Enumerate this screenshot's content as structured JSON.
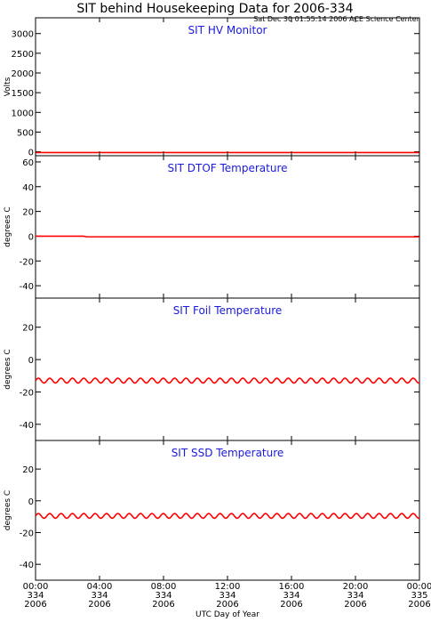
{
  "title": "SIT behind Housekeeping Data for 2006-334",
  "subtitle": "Sat Dec 30 01:55:14 2006 ACE Science Center",
  "colors": {
    "trace": "#ff0000",
    "panel_title": "#1a1adc",
    "axes": "#000000"
  },
  "x_axis": {
    "label": "UTC Day of Year",
    "ticks": [
      {
        "time": "00:00",
        "doy": "334",
        "year": "2006"
      },
      {
        "time": "04:00",
        "doy": "334",
        "year": "2006"
      },
      {
        "time": "08:00",
        "doy": "334",
        "year": "2006"
      },
      {
        "time": "12:00",
        "doy": "334",
        "year": "2006"
      },
      {
        "time": "16:00",
        "doy": "334",
        "year": "2006"
      },
      {
        "time": "20:00",
        "doy": "334",
        "year": "2006"
      },
      {
        "time": "00:00",
        "doy": "335",
        "year": "2006"
      }
    ]
  },
  "chart_data": [
    {
      "type": "line",
      "title": "SIT HV Monitor",
      "ylabel": "Volts",
      "xlim": [
        0,
        24
      ],
      "ylim": [
        -100,
        3400
      ],
      "yticks": [
        0,
        500,
        1000,
        1500,
        2000,
        2500,
        3000
      ],
      "grid": false,
      "series": [
        {
          "x": [
            0,
            24
          ],
          "y": [
            -20,
            -20
          ],
          "color": "#ff0000"
        }
      ]
    },
    {
      "type": "line",
      "title": "SIT DTOF Temperature",
      "ylabel": "degrees C",
      "xlim": [
        0,
        24
      ],
      "ylim": [
        -50,
        65
      ],
      "yticks": [
        -40,
        -20,
        0,
        20,
        40,
        60
      ],
      "grid": false,
      "series": [
        {
          "x": [
            0,
            3,
            3.2,
            24
          ],
          "y": [
            0,
            0,
            -0.5,
            -0.5
          ],
          "color": "#ff0000"
        }
      ]
    },
    {
      "type": "line",
      "title": "SIT Foil Temperature",
      "ylabel": "degrees C",
      "xlim": [
        0,
        24
      ],
      "ylim": [
        -50,
        38
      ],
      "yticks": [
        -40,
        -20,
        0,
        20
      ],
      "grid": false,
      "series": [
        {
          "oscillation": {
            "mean": -13,
            "amplitude": 1.5,
            "period_hours": 0.71
          },
          "color": "#ff0000"
        }
      ]
    },
    {
      "type": "line",
      "title": "SIT SSD Temperature",
      "ylabel": "degrees C",
      "xlim": [
        0,
        24
      ],
      "ylim": [
        -50,
        38
      ],
      "yticks": [
        -40,
        -20,
        0,
        20
      ],
      "grid": false,
      "series": [
        {
          "oscillation": {
            "mean": -9.5,
            "amplitude": 1.5,
            "period_hours": 0.71
          },
          "color": "#ff0000"
        }
      ]
    }
  ]
}
